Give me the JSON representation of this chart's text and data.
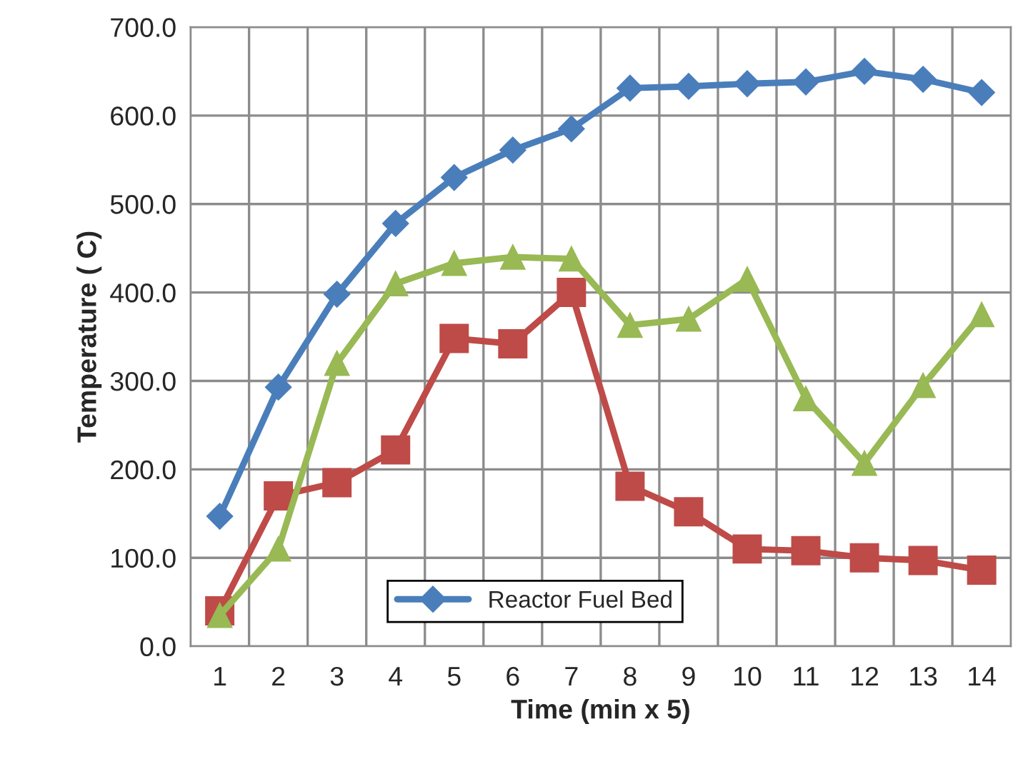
{
  "chart_data": {
    "type": "line",
    "xlabel": "Time (min x 5)",
    "ylabel": "Temperature ( C)",
    "categories": [
      "1",
      "2",
      "3",
      "4",
      "5",
      "6",
      "7",
      "8",
      "9",
      "10",
      "11",
      "12",
      "13",
      "14"
    ],
    "series": [
      {
        "name": "Reactor Fuel Bed",
        "color": "#4a7ebb",
        "marker": "diamond",
        "values": [
          147,
          293,
          398,
          478,
          530,
          561,
          585,
          631,
          633,
          636,
          638,
          650,
          641,
          626
        ]
      },
      {
        "color": "#be4b48",
        "marker": "square",
        "values": [
          40,
          170,
          185,
          222,
          348,
          342,
          400,
          181,
          152,
          110,
          108,
          100,
          97,
          86
        ]
      },
      {
        "color": "#98b954",
        "marker": "triangle",
        "values": [
          35,
          110,
          320,
          410,
          433,
          440,
          438,
          363,
          370,
          415,
          280,
          207,
          295,
          375
        ]
      }
    ],
    "ylim": [
      0,
      700
    ],
    "yticks": [
      {
        "value": 0,
        "label": "0.0"
      },
      {
        "value": 100,
        "label": "100.0"
      },
      {
        "value": 200,
        "label": "200.0"
      },
      {
        "value": 300,
        "label": "300.0"
      },
      {
        "value": 400,
        "label": "400.0"
      },
      {
        "value": 500,
        "label": "500.0"
      },
      {
        "value": 600,
        "label": "600.0"
      },
      {
        "value": 700,
        "label": "700.0"
      }
    ],
    "grid": true,
    "legend": "bottom",
    "line_style": "solid"
  }
}
